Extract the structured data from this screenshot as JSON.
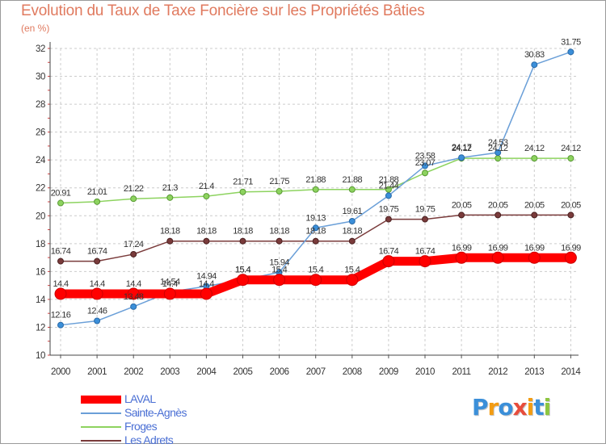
{
  "title": "Evolution du Taux de Taxe Foncière sur les Propriétés Bâties",
  "unit": "(en %)",
  "logo": {
    "letters": [
      "P",
      "r",
      "o",
      "x",
      "i",
      "t",
      "i"
    ],
    "colors": [
      "#3b8fd9",
      "#f39c12",
      "#3b8fd9",
      "#e74c3c",
      "#f39c12",
      "#3b8fd9",
      "#8dc63f"
    ]
  },
  "chart_data": {
    "type": "line",
    "title": "Evolution du Taux de Taxe Foncière sur les Propriétés Bâties",
    "ylabel": "(en %)",
    "ylim": [
      10,
      32
    ],
    "yticks": [
      10,
      12,
      14,
      16,
      18,
      20,
      22,
      24,
      26,
      28,
      30,
      32
    ],
    "grid": true,
    "categories": [
      "2000",
      "2001",
      "2002",
      "2003",
      "2004",
      "2005",
      "2006",
      "2007",
      "2008",
      "2009",
      "2010",
      "2011",
      "2012",
      "2013",
      "2014"
    ],
    "series": [
      {
        "name": "LAVAL",
        "color": "#ff0000",
        "values": [
          14.4,
          14.4,
          14.4,
          14.4,
          14.4,
          15.4,
          15.4,
          15.4,
          15.4,
          16.74,
          16.74,
          16.99,
          16.99,
          16.99,
          16.99
        ],
        "labels": [
          "14.4",
          "14.4",
          "14.4",
          "14.4",
          "14.4",
          "15.4",
          "15.4",
          "15.4",
          "15.4",
          "16.74",
          "16.74",
          "16.99",
          "16.99",
          "16.99",
          "16.99"
        ]
      },
      {
        "name": "Sainte-Agnès",
        "color": "#6a9fd8",
        "values": [
          12.16,
          12.46,
          13.48,
          14.54,
          14.94,
          15.4,
          15.94,
          19.13,
          19.61,
          21.44,
          23.58,
          24.17,
          24.53,
          30.83,
          31.75
        ],
        "labels": [
          "12.16",
          "12.46",
          "13.48",
          "14.54",
          "14.94",
          "15.4",
          "15.94",
          "19.13",
          "19.61",
          "21.44",
          "23.58",
          "24.17",
          "24.53",
          "30.83",
          "31.75"
        ]
      },
      {
        "name": "Froges",
        "color": "#8dd35f",
        "values": [
          20.91,
          21.01,
          21.22,
          21.3,
          21.4,
          21.71,
          21.75,
          21.88,
          21.88,
          21.88,
          23.07,
          24.12,
          24.12,
          24.12,
          24.12
        ],
        "labels": [
          "20.91",
          "21.01",
          "21.22",
          "21.3",
          "21.4",
          "21.71",
          "21.75",
          "21.88",
          "21.88",
          "21.88",
          "23.07",
          "24.12",
          "24.12",
          "24.12",
          "24.12"
        ]
      },
      {
        "name": "Les Adrets",
        "color": "#7a3b3b",
        "values": [
          16.74,
          16.74,
          17.24,
          18.18,
          18.18,
          18.18,
          18.18,
          18.18,
          18.18,
          19.75,
          19.75,
          20.05,
          20.05,
          20.05,
          20.05
        ],
        "labels": [
          "16.74",
          "16.74",
          "17.24",
          "18.18",
          "18.18",
          "18.18",
          "18.18",
          "18.18",
          "18.18",
          "19.75",
          "19.75",
          "20.05",
          "20.05",
          "20.05",
          "20.05"
        ]
      }
    ]
  }
}
